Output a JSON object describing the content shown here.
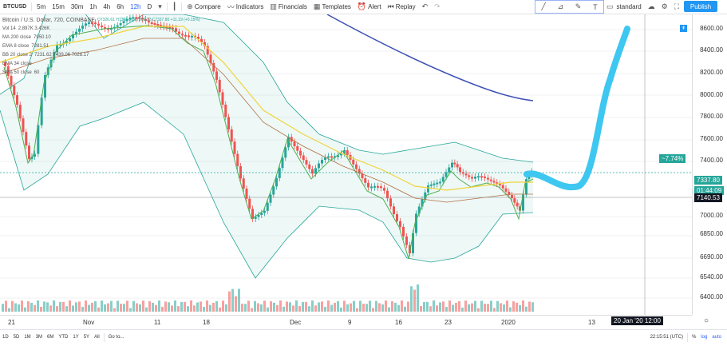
{
  "toolbar": {
    "symbol": "BTCUSD",
    "intervals": [
      "5m",
      "15m",
      "30m",
      "1h",
      "4h",
      "6h",
      "12h",
      "D"
    ],
    "active_interval": "12h",
    "compare": "Compare",
    "indicators": "Indicators",
    "financials": "Financials",
    "templates": "Templates",
    "alert": "Alert",
    "replay": "Replay",
    "layout": "standard",
    "publish": "Publish"
  },
  "legend": {
    "title": "Bitcoin / U.S. Dollar, 720, COINBASE",
    "ohlc": "O7326.61 H7398.00 L7302.32 C7337.80 +11.19 (+0.15%)",
    "vol": "Vol 14",
    "vol_vals": "2.897K  3.426K",
    "ma200": "MA 200 close",
    "ma200_val": "7950.10",
    "ema8": "EMA 8 close",
    "ema8_val": "7281.51",
    "bb": "BB 20 close 2",
    "bb_vals": "7231.62  7439.06  7028.17",
    "ema34": "EMA 34 close",
    "sma_label": "SMA 50 close",
    "sma_val": "60"
  },
  "price_axis": {
    "labels": [
      "8600.00",
      "8400.00",
      "8200.00",
      "8000.00",
      "7800.00",
      "7600.00",
      "7400.00",
      "7000.00",
      "6850.00",
      "6690.00",
      "6540.00",
      "6400.00"
    ],
    "last_change": "~7.74%",
    "last_price": "7337.80",
    "countdown": "01:44:09",
    "crosshair_price": "7140.53"
  },
  "time_axis": {
    "labels": [
      "21",
      "Nov",
      "11",
      "18",
      "Dec",
      "9",
      "16",
      "23",
      "2020",
      "13"
    ],
    "crosshair_time": "20 Jan '20   12:00"
  },
  "bottom_bar": {
    "ranges": [
      "1D",
      "5D",
      "1M",
      "3M",
      "6M",
      "YTD",
      "1Y",
      "5Y",
      "All"
    ],
    "goto": "Go to...",
    "clock": "22:15:51 (UTC)",
    "pct": "%",
    "log": "log",
    "auto": "auto"
  },
  "colors": {
    "up": "#26a69a",
    "down": "#ef5350",
    "ma200": "#3f51b5",
    "ema8": "#4caf50",
    "sma50": "#f0d43a",
    "ema34": "#b07040",
    "bb": "#26a69a",
    "annotation": "#3ec7f0",
    "accent": "#2196f3"
  }
}
